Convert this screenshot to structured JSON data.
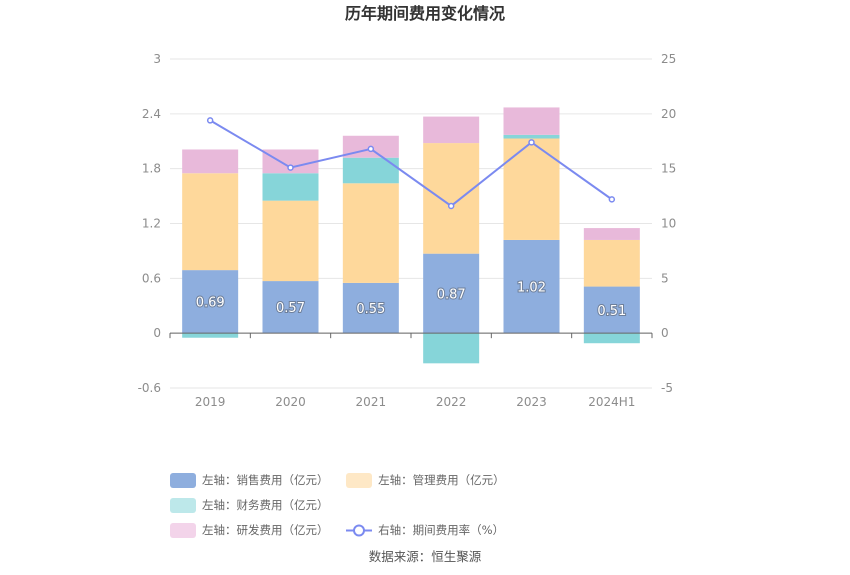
{
  "chart_data": {
    "type": "bar",
    "title": "历年期间费用变化情况",
    "categories": [
      "2019",
      "2020",
      "2021",
      "2022",
      "2023",
      "2024H1"
    ],
    "left_axis": {
      "min": -0.6,
      "max": 3,
      "ticks": [
        "-0.6",
        "0",
        "0.6",
        "1.2",
        "1.8",
        "2.4",
        "3"
      ]
    },
    "right_axis": {
      "min": -5,
      "max": 25,
      "ticks": [
        "-5",
        "0",
        "5",
        "10",
        "15",
        "20",
        "25"
      ]
    },
    "series": [
      {
        "name": "左轴：销售费用（亿元）",
        "kind": "bar",
        "color": "#8eaede",
        "values": [
          0.69,
          0.57,
          0.55,
          0.87,
          1.02,
          0.51
        ],
        "labels": [
          "0.69",
          "0.57",
          "0.55",
          "0.87",
          "1.02",
          "0.51"
        ]
      },
      {
        "name": "左轴：管理费用（亿元）",
        "kind": "bar",
        "color": "#fed89b",
        "values": [
          1.06,
          0.88,
          1.09,
          1.21,
          1.11,
          0.51
        ]
      },
      {
        "name": "左轴：财务费用（亿元）",
        "kind": "bar",
        "color": "#86d5d9",
        "values": [
          -0.05,
          0.3,
          0.28,
          -0.33,
          0.04,
          -0.11
        ]
      },
      {
        "name": "左轴：研发费用（亿元）",
        "kind": "bar",
        "color": "#e8b9da",
        "values": [
          0.26,
          0.26,
          0.24,
          0.29,
          0.3,
          0.13
        ]
      },
      {
        "name": "右轴：期间费用率（%）",
        "kind": "line",
        "color": "#7b8af0",
        "values": [
          19.4,
          15.1,
          16.8,
          11.6,
          17.4,
          12.2
        ]
      }
    ]
  },
  "legend_colors": {
    "sales": "#8eaede",
    "management": "#fee8c6",
    "finance": "#bde8ea",
    "rnd": "#f3d4ea",
    "rate": "#7b8af0"
  },
  "source": "数据来源：恒生聚源"
}
